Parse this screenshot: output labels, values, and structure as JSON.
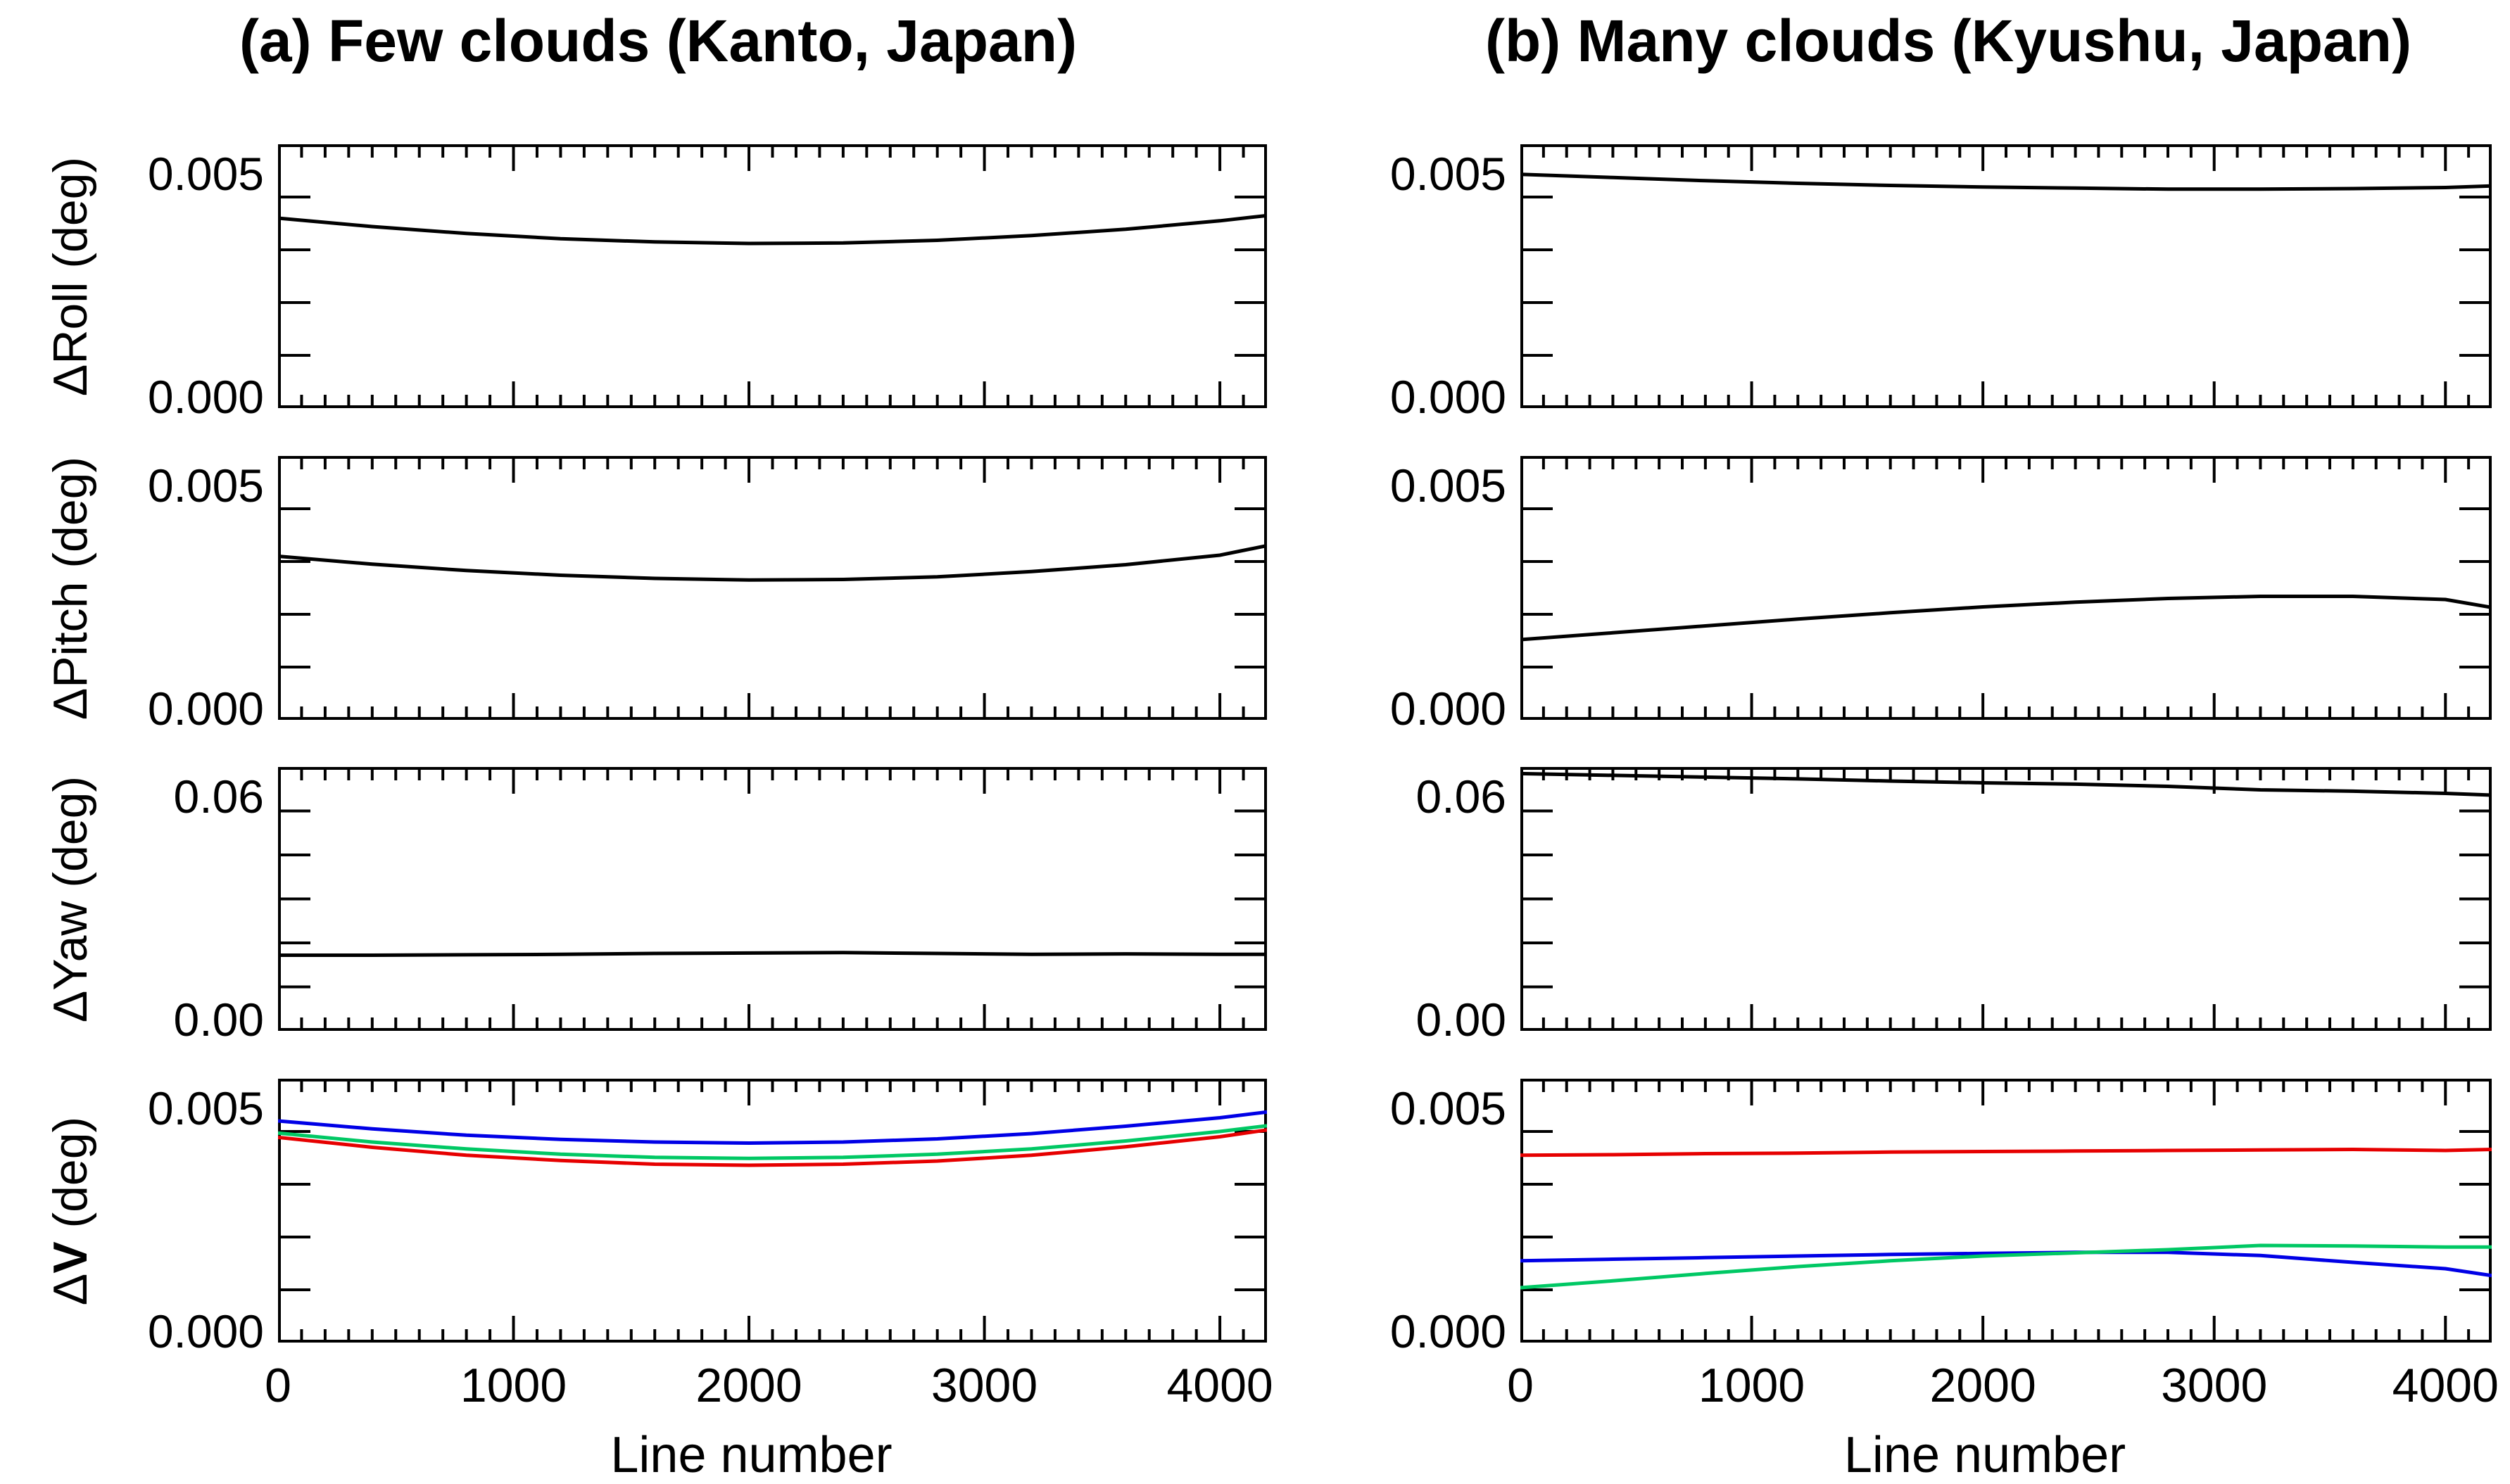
{
  "figure": {
    "background": "#ffffff",
    "line_colors": {
      "black": "#000000",
      "red": "#e60000",
      "green": "#00c864",
      "blue": "#0000e6"
    },
    "columns": [
      {
        "id": "a",
        "title": "(a) Few clouds (Kanto, Japan)"
      },
      {
        "id": "b",
        "title": "(b) Many clouds (Kyushu, Japan)"
      }
    ],
    "xlabel": "Line number",
    "x_ticks": [
      "0",
      "1000",
      "2000",
      "3000",
      "4000"
    ],
    "x_tick_values": [
      0,
      1000,
      2000,
      3000,
      4000
    ],
    "x_range": [
      0,
      4200
    ]
  },
  "chart_data": [
    {
      "id": "roll-a",
      "type": "line",
      "col": "a",
      "row": 0,
      "ylabel": "ΔRoll (deg)",
      "ylabel_delta": "Δ",
      "ylabel_name": "Roll",
      "ylabel_unit": " (deg)",
      "ylabel_name_bold": false,
      "ylim": [
        0,
        0.005
      ],
      "y_minor": 0.001,
      "ytick_labels": [
        "0.000",
        "0.005"
      ],
      "x": [
        0,
        400,
        800,
        1200,
        1600,
        2000,
        2400,
        2800,
        3200,
        3600,
        4000,
        4200
      ],
      "series": [
        {
          "name": "black",
          "color": "#000000",
          "values": [
            0.0036,
            0.00344,
            0.00331,
            0.00321,
            0.00315,
            0.00312,
            0.00313,
            0.00318,
            0.00327,
            0.00339,
            0.00355,
            0.00365
          ]
        }
      ]
    },
    {
      "id": "roll-b",
      "type": "line",
      "col": "b",
      "row": 0,
      "ylim": [
        0,
        0.005
      ],
      "y_minor": 0.001,
      "ytick_labels": [
        "0.000",
        "0.005"
      ],
      "x": [
        0,
        400,
        800,
        1200,
        1600,
        2000,
        2400,
        2800,
        3200,
        3600,
        4000,
        4200
      ],
      "series": [
        {
          "name": "black",
          "color": "#000000",
          "values": [
            0.00443,
            0.00437,
            0.00431,
            0.00426,
            0.00422,
            0.00419,
            0.00417,
            0.00415,
            0.00415,
            0.00416,
            0.00418,
            0.00421
          ]
        }
      ]
    },
    {
      "id": "pitch-a",
      "type": "line",
      "col": "a",
      "row": 1,
      "ylabel": "ΔPitch (deg)",
      "ylabel_delta": "Δ",
      "ylabel_name": "Pitch",
      "ylabel_unit": " (deg)",
      "ylabel_name_bold": false,
      "ylim": [
        0,
        0.005
      ],
      "y_minor": 0.001,
      "ytick_labels": [
        "0.000",
        "0.005"
      ],
      "x": [
        0,
        400,
        800,
        1200,
        1600,
        2000,
        2400,
        2800,
        3200,
        3600,
        4000,
        4200
      ],
      "series": [
        {
          "name": "black",
          "color": "#000000",
          "values": [
            0.0031,
            0.00295,
            0.00283,
            0.00274,
            0.00268,
            0.00265,
            0.00266,
            0.00271,
            0.00281,
            0.00294,
            0.00312,
            0.0033
          ]
        }
      ]
    },
    {
      "id": "pitch-b",
      "type": "line",
      "col": "b",
      "row": 1,
      "ylim": [
        0,
        0.005
      ],
      "y_minor": 0.001,
      "ytick_labels": [
        "0.000",
        "0.005"
      ],
      "x": [
        0,
        400,
        800,
        1200,
        1600,
        2000,
        2400,
        2800,
        3200,
        3600,
        4000,
        4200
      ],
      "series": [
        {
          "name": "black",
          "color": "#000000",
          "values": [
            0.00152,
            0.00165,
            0.00178,
            0.00191,
            0.00203,
            0.00214,
            0.00223,
            0.0023,
            0.00234,
            0.00234,
            0.00228,
            0.00213
          ]
        }
      ]
    },
    {
      "id": "yaw-a",
      "type": "line",
      "col": "a",
      "row": 2,
      "ylabel": "ΔYaw (deg)",
      "ylabel_delta": "Δ",
      "ylabel_name": "Yaw",
      "ylabel_unit": " (deg)",
      "ylabel_name_bold": false,
      "ylim": [
        0,
        0.06
      ],
      "y_minor": 0.01,
      "ytick_labels": [
        "0.00",
        "0.06"
      ],
      "x": [
        0,
        400,
        800,
        1200,
        1600,
        2000,
        2400,
        2800,
        3200,
        3600,
        4000,
        4200
      ],
      "series": [
        {
          "name": "black",
          "color": "#000000",
          "values": [
            0.0172,
            0.0172,
            0.0173,
            0.0174,
            0.0176,
            0.0177,
            0.0178,
            0.0176,
            0.0174,
            0.0175,
            0.0174,
            0.0174
          ]
        }
      ]
    },
    {
      "id": "yaw-b",
      "type": "line",
      "col": "b",
      "row": 2,
      "ylim": [
        0,
        0.06
      ],
      "y_minor": 0.01,
      "ytick_labels": [
        "0.00",
        "0.06"
      ],
      "x": [
        0,
        400,
        800,
        1200,
        1600,
        2000,
        2400,
        2800,
        3200,
        3600,
        4000,
        4200
      ],
      "series": [
        {
          "name": "black",
          "color": "#000000",
          "values": [
            0.0585,
            0.0581,
            0.0577,
            0.0573,
            0.0568,
            0.0564,
            0.0561,
            0.0556,
            0.0548,
            0.0545,
            0.054,
            0.0536
          ]
        }
      ]
    },
    {
      "id": "v-a",
      "type": "line",
      "col": "a",
      "row": 3,
      "ylabel": "ΔV (deg)",
      "ylabel_delta": "Δ",
      "ylabel_name": "V",
      "ylabel_unit": " (deg)",
      "ylabel_name_bold": true,
      "ylim": [
        0,
        0.005
      ],
      "y_minor": 0.001,
      "ytick_labels": [
        "0.000",
        "0.005"
      ],
      "x": [
        0,
        400,
        800,
        1200,
        1600,
        2000,
        2400,
        2800,
        3200,
        3600,
        4000,
        4200
      ],
      "series": [
        {
          "name": "blue",
          "color": "#0000e6",
          "values": [
            0.0042,
            0.00405,
            0.00393,
            0.00385,
            0.0038,
            0.00378,
            0.0038,
            0.00386,
            0.00396,
            0.0041,
            0.00426,
            0.00437
          ]
        },
        {
          "name": "green",
          "color": "#00c864",
          "values": [
            0.00397,
            0.0038,
            0.00367,
            0.00357,
            0.00351,
            0.00349,
            0.00351,
            0.00357,
            0.00367,
            0.00382,
            0.004,
            0.00411
          ]
        },
        {
          "name": "red",
          "color": "#e60000",
          "values": [
            0.00389,
            0.0037,
            0.00355,
            0.00345,
            0.00338,
            0.00336,
            0.00338,
            0.00344,
            0.00355,
            0.00371,
            0.0039,
            0.00403
          ]
        }
      ]
    },
    {
      "id": "v-b",
      "type": "line",
      "col": "b",
      "row": 3,
      "ylim": [
        0,
        0.005
      ],
      "y_minor": 0.001,
      "ytick_labels": [
        "0.000",
        "0.005"
      ],
      "x": [
        0,
        400,
        800,
        1200,
        1600,
        2000,
        2400,
        2800,
        3200,
        3600,
        4000,
        4200
      ],
      "series": [
        {
          "name": "red",
          "color": "#e60000",
          "values": [
            0.00355,
            0.00356,
            0.00358,
            0.00359,
            0.00361,
            0.00362,
            0.00363,
            0.00364,
            0.00365,
            0.00366,
            0.00364,
            0.00366
          ]
        },
        {
          "name": "blue",
          "color": "#0000e6",
          "values": [
            0.00155,
            0.00158,
            0.00161,
            0.00164,
            0.00167,
            0.00169,
            0.00171,
            0.00171,
            0.00165,
            0.00152,
            0.0014,
            0.00127
          ]
        },
        {
          "name": "green",
          "color": "#00c864",
          "values": [
            0.00104,
            0.00117,
            0.00131,
            0.00144,
            0.00155,
            0.00164,
            0.0017,
            0.00176,
            0.00184,
            0.00183,
            0.00181,
            0.00181
          ]
        }
      ]
    }
  ]
}
